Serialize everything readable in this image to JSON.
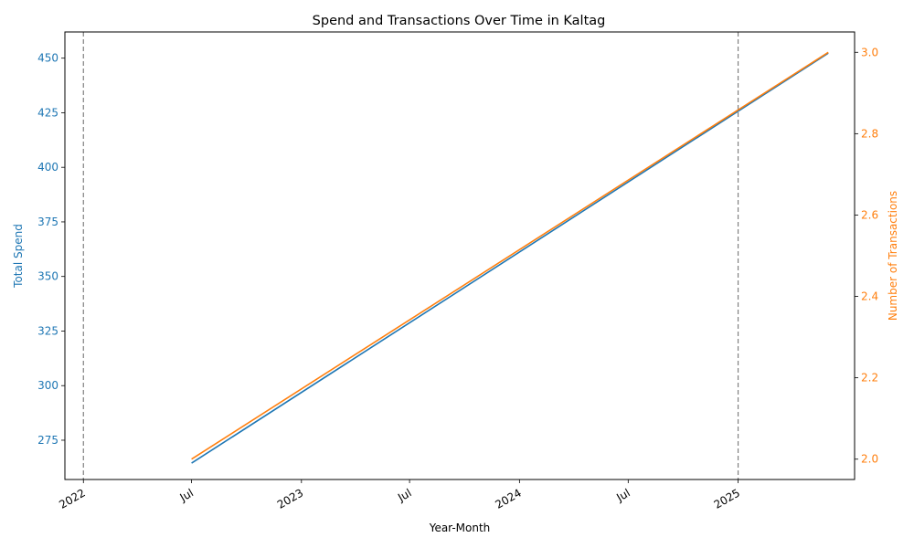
{
  "chart_data": {
    "type": "line",
    "title": "Spend and Transactions Over Time in Kaltag",
    "xlabel": "Year-Month",
    "x_tick_labels": [
      "2022",
      "Jul",
      "2023",
      "Jul",
      "2024",
      "Jul",
      "2025"
    ],
    "x_ticks": [
      "2022-01-01",
      "2022-07-01",
      "2023-01-01",
      "2023-07-01",
      "2024-01-01",
      "2024-07-01",
      "2025-01-01"
    ],
    "x_range": [
      "2021-12-01",
      "2025-07-15"
    ],
    "vlines": [
      "2022-01-01",
      "2025-01-01"
    ],
    "left_axis": {
      "label": "Total Spend",
      "color": "#1f77b4",
      "ylim": [
        257,
        462
      ],
      "ticks": [
        275,
        300,
        325,
        350,
        375,
        400,
        425,
        450
      ]
    },
    "right_axis": {
      "label": "Number of Transactions",
      "color": "#ff7f0e",
      "ylim": [
        1.95,
        3.05
      ],
      "ticks": [
        2.0,
        2.2,
        2.4,
        2.6,
        2.8,
        3.0
      ]
    },
    "series": [
      {
        "axis": "left",
        "color": "#1f77b4",
        "x": [
          "2022-07-01",
          "2025-06-01"
        ],
        "y": [
          264.5,
          452.3
        ]
      },
      {
        "axis": "right",
        "color": "#ff7f0e",
        "x": [
          "2022-07-01",
          "2025-06-01"
        ],
        "y": [
          2.0,
          3.0
        ]
      }
    ]
  }
}
